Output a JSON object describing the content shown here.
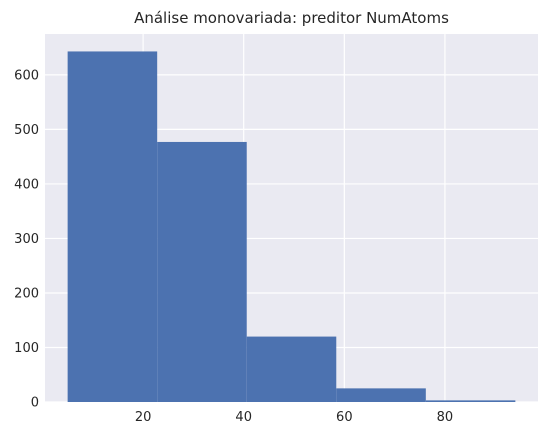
{
  "chart_data": {
    "type": "bar",
    "subtype": "histogram",
    "title": "Análise monovariada: preditor NumAtoms",
    "xlabel": "",
    "ylabel": "",
    "bins": [
      {
        "x0": 5.0,
        "x1": 22.8,
        "value": 643
      },
      {
        "x0": 22.8,
        "x1": 40.6,
        "value": 477
      },
      {
        "x0": 40.6,
        "x1": 58.4,
        "value": 120
      },
      {
        "x0": 58.4,
        "x1": 76.2,
        "value": 25
      },
      {
        "x0": 76.2,
        "x1": 94.0,
        "value": 3
      }
    ],
    "xlim": [
      0.5,
      98.5
    ],
    "ylim": [
      0,
      675
    ],
    "x_ticks": [
      20,
      40,
      60,
      80
    ],
    "y_ticks": [
      0,
      100,
      200,
      300,
      400,
      500,
      600
    ],
    "grid": true,
    "legend": "none",
    "colors": {
      "bar": "#4c72b0",
      "background": "#eaeaf2",
      "grid": "#ffffff",
      "text": "#262626"
    }
  }
}
